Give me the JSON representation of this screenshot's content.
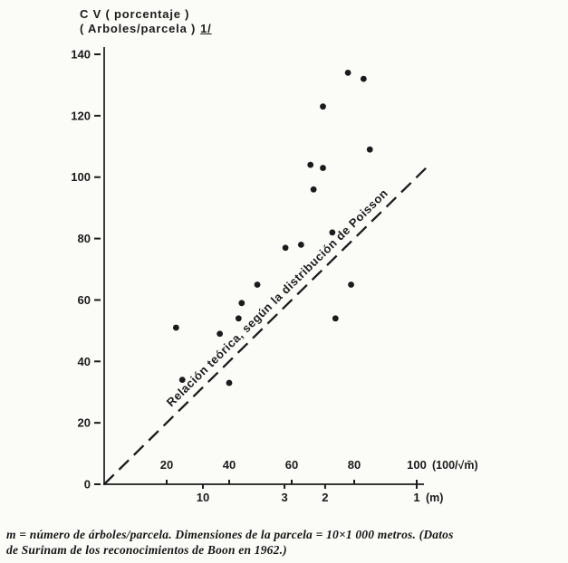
{
  "header": {
    "title_line1": "C V ( porcentaje )",
    "title_line2": "( Arboles/parcela )",
    "footnote_marker": "1/"
  },
  "chart_data": {
    "type": "scatter",
    "title": "CV (porcentaje) (Arboles/parcela) vs 100/√m",
    "xlabel": "(100/√m̄)",
    "x2label": "(m)",
    "ylabel": "CV (porcentaje) (Arboles/parcela)",
    "xlim": [
      0,
      100
    ],
    "ylim": [
      0,
      140
    ],
    "grid": false,
    "x_ticks": [
      20,
      40,
      60,
      80,
      100
    ],
    "y_ticks": [
      0,
      20,
      40,
      60,
      80,
      100,
      120,
      140
    ],
    "m_scale": [
      {
        "label": "10",
        "x": 31.6
      },
      {
        "label": "3",
        "x": 57.7
      },
      {
        "label": "2",
        "x": 70.7
      },
      {
        "label": "1",
        "x": 100
      }
    ],
    "points": [
      [
        23,
        51
      ],
      [
        25,
        34
      ],
      [
        37,
        49
      ],
      [
        40,
        33
      ],
      [
        43,
        54
      ],
      [
        44,
        59
      ],
      [
        49,
        65
      ],
      [
        58,
        77
      ],
      [
        63,
        78
      ],
      [
        66,
        104
      ],
      [
        67,
        96
      ],
      [
        70,
        103
      ],
      [
        70,
        123
      ],
      [
        73,
        82
      ],
      [
        74,
        54
      ],
      [
        78,
        134
      ],
      [
        79,
        65
      ],
      [
        83,
        132
      ],
      [
        85,
        109
      ]
    ],
    "point_color": "#1b1b1b",
    "reference_line": {
      "from": [
        0,
        0
      ],
      "to": [
        103,
        103
      ],
      "style": "dashed",
      "label": "Relación teórica, según la distribución de Poisson"
    }
  },
  "caption": {
    "line1": "m = número de árboles/parcela.  Dimensiones de la parcela = 10×1 000 metros.  (Datos",
    "line2": "de Surinam de los reconocimientos de Boon en 1962.)"
  }
}
